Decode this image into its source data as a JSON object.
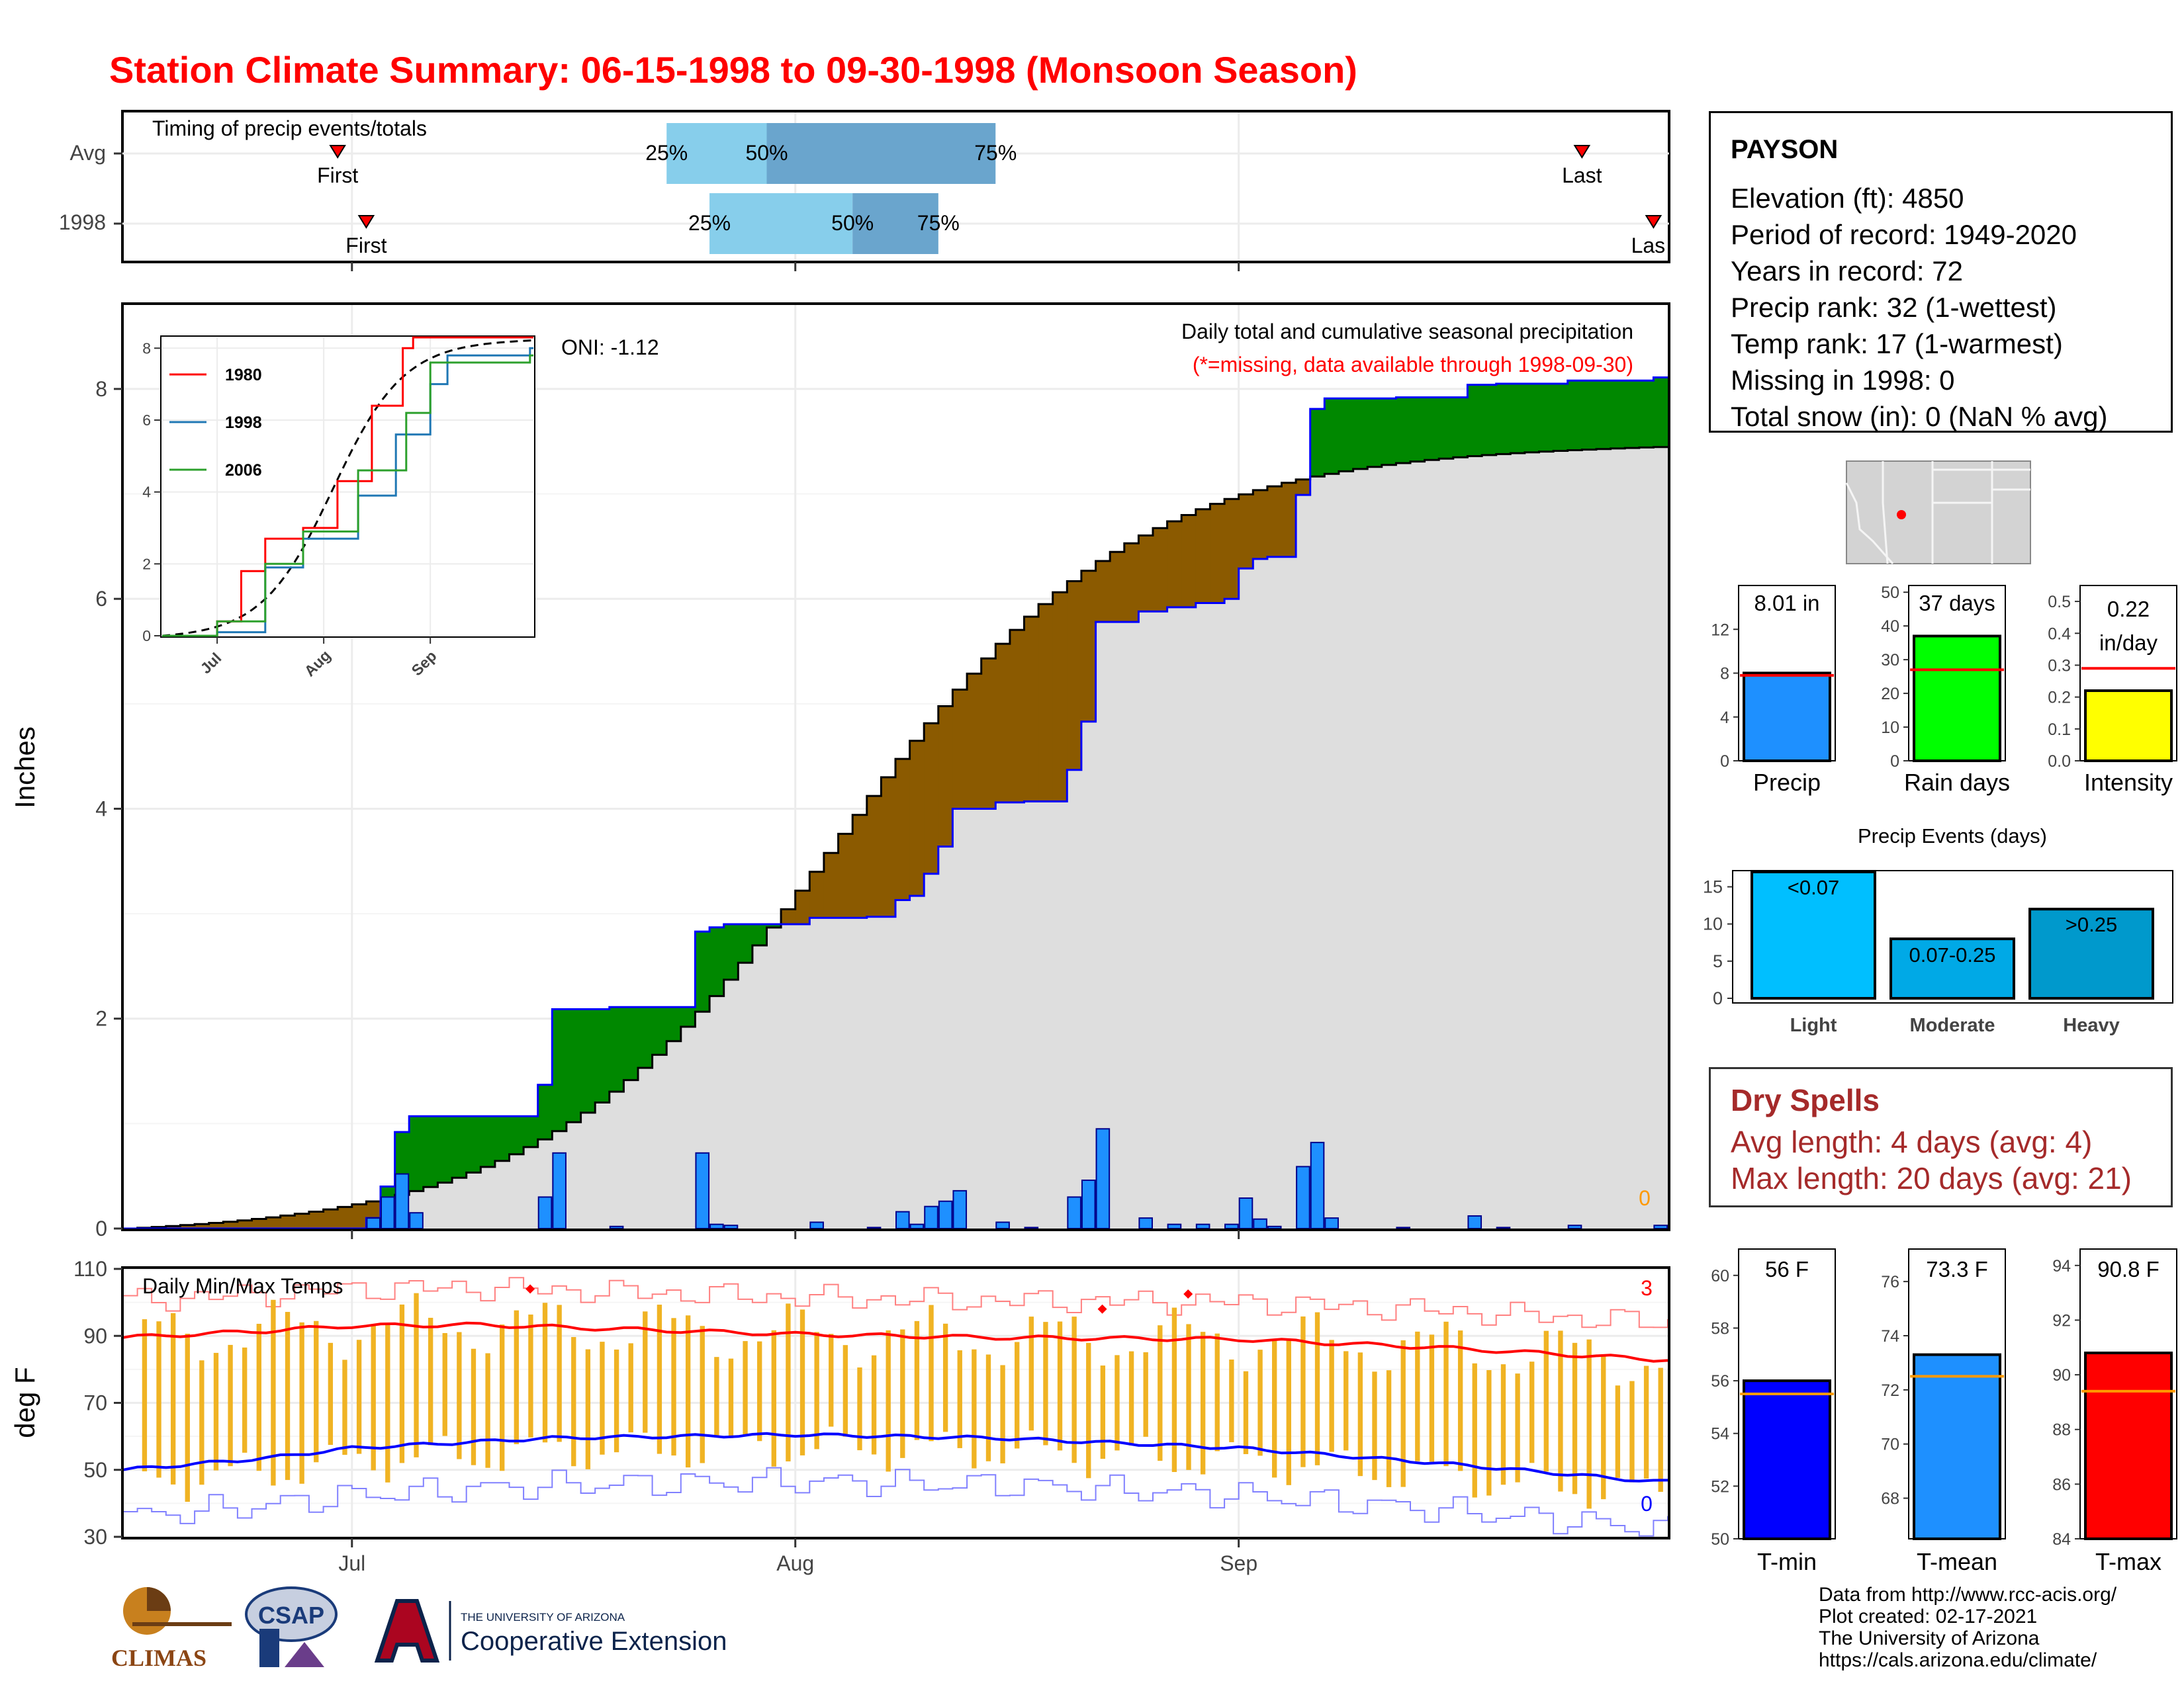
{
  "title": "Station Climate Summary: 06-15-1998 to 09-30-1998 (Monsoon Season)",
  "colors": {
    "title_red": "#ff0000",
    "brown_below": "#8b5a00",
    "green_above": "#008800",
    "bar_blue": "#1e90ff",
    "range_orange": "#f0b323",
    "tmax_red": "#ff0000",
    "tmin_blue": "#0000ff",
    "light_blue": "#87ceeb",
    "mid_blue": "#6aa5cd"
  },
  "timing": {
    "title": "Timing of precip events/totals",
    "rows": [
      "Avg",
      "1998"
    ],
    "first_label": "First",
    "last_label": "Last",
    "last_label_truncated": "Las",
    "pct_labels": [
      "25%",
      "50%",
      "75%"
    ]
  },
  "station_info": {
    "station": "PAYSON",
    "lines": [
      "Elevation (ft): 4850",
      "Period of record: 1949-2020",
      "Years in record: 72",
      "Precip rank: 32 (1-wettest)",
      "Temp rank: 17 (1-warmest)",
      "Missing in 1998: 0",
      "Total snow (in): 0 (NaN % avg)"
    ]
  },
  "main_panel": {
    "ylabel": "Inches",
    "annot_title": "Daily total and cumulative seasonal precipitation",
    "annot_missing": "(*=missing, data available through 1998-09-30)",
    "oni": "ONI: -1.12",
    "missing_count": "0",
    "inset_legend": [
      "1980",
      "1998",
      "2006"
    ],
    "inset_colors": [
      "#ff0000",
      "#1f77b4",
      "#2ca02c"
    ]
  },
  "temp_panel": {
    "title": "Daily Min/Max Temps",
    "ylabel": "deg F",
    "count_hot": "3",
    "count_cold": "0"
  },
  "small_bars": {
    "precip_label": "8.01 in",
    "raindays_label": "37 days",
    "intensity_value": "0.22",
    "intensity_unit": "in/day",
    "xlabels": [
      "Precip",
      "Rain days",
      "Intensity"
    ]
  },
  "events": {
    "title": "Precip Events (days)",
    "categories": [
      "Light",
      "Moderate",
      "Heavy"
    ],
    "bar_labels": [
      "<0.07",
      "0.07-0.25",
      ">0.25"
    ]
  },
  "dry_spells": {
    "title": "Dry Spells",
    "avg": "Avg length: 4 days (avg: 4)",
    "max": "Max length: 20 days (avg: 21)"
  },
  "temp_bars": {
    "labels": [
      "56 F",
      "73.3 F",
      "90.8 F"
    ],
    "xlabels": [
      "T-min",
      "T-mean",
      "T-max"
    ]
  },
  "credits": [
    "Data from http://www.rcc-acis.org/",
    "Plot created: 02-17-2021",
    "The University of Arizona",
    "https://cals.arizona.edu/climate/"
  ],
  "logos": {
    "climas": "CLIMAS",
    "csap": "CSAP",
    "ua_small": "THE UNIVERSITY OF ARIZONA",
    "ua_big": "Cooperative Extension"
  },
  "chart_data": [
    {
      "id": "timing",
      "type": "bar",
      "title": "Timing of precip events/totals",
      "x_axis_range": [
        "1998-06-15",
        "1998-09-30"
      ],
      "x_ticks": [
        "Jul",
        "Aug",
        "Sep"
      ],
      "rows": [
        {
          "name": "Avg",
          "first": "1998-06-30",
          "p25": "1998-07-23",
          "p50": "1998-07-30",
          "p75": "1998-08-15",
          "last": "1998-09-25"
        },
        {
          "name": "1998",
          "first": "1998-07-02",
          "p25": "1998-07-26",
          "p50": "1998-08-05",
          "p75": "1998-08-11",
          "last": "1998-09-30"
        }
      ]
    },
    {
      "id": "precip_main",
      "type": "area",
      "title": "Daily total and cumulative seasonal precipitation",
      "ylabel": "Inches",
      "x_axis_range": [
        "1998-06-15",
        "1998-09-30"
      ],
      "x_ticks": [
        "Jul",
        "Aug",
        "Sep"
      ],
      "ylim": [
        0,
        8.8
      ],
      "y_ticks": [
        0,
        2,
        4,
        6,
        8
      ],
      "avg_cumulative_end": 7.45,
      "observed_cumulative_end": 8.01,
      "daily_precip": [
        {
          "x": "1998-07-02",
          "y": 0.1
        },
        {
          "x": "1998-07-03",
          "y": 0.3
        },
        {
          "x": "1998-07-04",
          "y": 0.52
        },
        {
          "x": "1998-07-05",
          "y": 0.15
        },
        {
          "x": "1998-07-14",
          "y": 0.3
        },
        {
          "x": "1998-07-15",
          "y": 0.72
        },
        {
          "x": "1998-07-19",
          "y": 0.02
        },
        {
          "x": "1998-07-25",
          "y": 0.72
        },
        {
          "x": "1998-07-26",
          "y": 0.04
        },
        {
          "x": "1998-07-27",
          "y": 0.03
        },
        {
          "x": "1998-08-02",
          "y": 0.06
        },
        {
          "x": "1998-08-06",
          "y": 0.01
        },
        {
          "x": "1998-08-08",
          "y": 0.16
        },
        {
          "x": "1998-08-09",
          "y": 0.04
        },
        {
          "x": "1998-08-10",
          "y": 0.21
        },
        {
          "x": "1998-08-11",
          "y": 0.26
        },
        {
          "x": "1998-08-12",
          "y": 0.36
        },
        {
          "x": "1998-08-15",
          "y": 0.06
        },
        {
          "x": "1998-08-17",
          "y": 0.01
        },
        {
          "x": "1998-08-20",
          "y": 0.3
        },
        {
          "x": "1998-08-21",
          "y": 0.46
        },
        {
          "x": "1998-08-22",
          "y": 0.95
        },
        {
          "x": "1998-08-25",
          "y": 0.1
        },
        {
          "x": "1998-08-27",
          "y": 0.04
        },
        {
          "x": "1998-08-29",
          "y": 0.04
        },
        {
          "x": "1998-08-31",
          "y": 0.04
        },
        {
          "x": "1998-09-01",
          "y": 0.29
        },
        {
          "x": "1998-09-02",
          "y": 0.09
        },
        {
          "x": "1998-09-03",
          "y": 0.02
        },
        {
          "x": "1998-09-05",
          "y": 0.59
        },
        {
          "x": "1998-09-06",
          "y": 0.82
        },
        {
          "x": "1998-09-07",
          "y": 0.1
        },
        {
          "x": "1998-09-12",
          "y": 0.01
        },
        {
          "x": "1998-09-17",
          "y": 0.12
        },
        {
          "x": "1998-09-19",
          "y": 0.01
        },
        {
          "x": "1998-09-24",
          "y": 0.03
        },
        {
          "x": "1998-09-30",
          "y": 0.03
        }
      ]
    },
    {
      "id": "inset_cumulative",
      "type": "line",
      "x_ticks": [
        "Jul",
        "Aug",
        "Sep"
      ],
      "ylim": [
        0,
        8.3
      ],
      "y_ticks": [
        0,
        2,
        4,
        6,
        8
      ],
      "series": [
        {
          "name": "1980",
          "points": [
            [
              "1998-07-01",
              0.4
            ],
            [
              "1998-07-08",
              1.8
            ],
            [
              "1998-07-15",
              2.7
            ],
            [
              "1998-07-26",
              3.0
            ],
            [
              "1998-08-05",
              4.3
            ],
            [
              "1998-08-15",
              6.4
            ],
            [
              "1998-08-24",
              8.0
            ],
            [
              "1998-08-27",
              8.3
            ]
          ]
        },
        {
          "name": "1998",
          "points": [
            [
              "1998-07-01",
              0.1
            ],
            [
              "1998-07-15",
              1.9
            ],
            [
              "1998-07-26",
              2.7
            ],
            [
              "1998-08-11",
              3.9
            ],
            [
              "1998-08-22",
              5.6
            ],
            [
              "1998-09-01",
              7.0
            ],
            [
              "1998-09-06",
              7.8
            ],
            [
              "1998-09-30",
              8.0
            ]
          ]
        },
        {
          "name": "2006",
          "points": [
            [
              "1998-07-01",
              0.4
            ],
            [
              "1998-07-15",
              2.0
            ],
            [
              "1998-07-26",
              2.9
            ],
            [
              "1998-08-11",
              4.6
            ],
            [
              "1998-08-25",
              6.2
            ],
            [
              "1998-09-01",
              7.6
            ],
            [
              "1998-09-30",
              7.8
            ]
          ]
        }
      ]
    },
    {
      "id": "temps",
      "type": "line",
      "title": "Daily Min/Max Temps",
      "ylabel": "deg F",
      "x_ticks": [
        "Jul",
        "Aug",
        "Sep"
      ],
      "ylim": [
        30,
        110
      ],
      "y_ticks": [
        30,
        50,
        70,
        90,
        110
      ],
      "series": [
        {
          "name": "avg_max",
          "points": [
            [
              "1998-06-15",
              89.5
            ],
            [
              "1998-06-25",
              91.5
            ],
            [
              "1998-07-01",
              93.0
            ],
            [
              "1998-07-10",
              93.3
            ],
            [
              "1998-07-20",
              92.0
            ],
            [
              "1998-08-01",
              90.5
            ],
            [
              "1998-08-15",
              89.5
            ],
            [
              "1998-09-01",
              89.0
            ],
            [
              "1998-09-15",
              86.5
            ],
            [
              "1998-09-30",
              83.0
            ]
          ]
        },
        {
          "name": "avg_min",
          "points": [
            [
              "1998-06-15",
              50.0
            ],
            [
              "1998-06-25",
              53.5
            ],
            [
              "1998-07-01",
              56.5
            ],
            [
              "1998-07-15",
              59.5
            ],
            [
              "1998-08-01",
              60.5
            ],
            [
              "1998-08-15",
              59.5
            ],
            [
              "1998-09-01",
              56.5
            ],
            [
              "1998-09-15",
              52.0
            ],
            [
              "1998-09-30",
              46.5
            ]
          ]
        }
      ],
      "record_highs_marked": [
        [
          "1998-07-13",
          104.0
        ],
        [
          "1998-08-22",
          98.0
        ],
        [
          "1998-08-28",
          102.5
        ]
      ]
    },
    {
      "id": "small_precip",
      "type": "bar",
      "categories": [
        "Precip"
      ],
      "values": [
        8.01
      ],
      "avg": 7.8,
      "ylim": [
        0,
        16
      ],
      "y_ticks": [
        0,
        4,
        8,
        12
      ]
    },
    {
      "id": "small_raindays",
      "type": "bar",
      "categories": [
        "Rain days"
      ],
      "values": [
        37
      ],
      "avg": 27,
      "ylim": [
        0,
        52
      ],
      "y_ticks": [
        0,
        10,
        20,
        30,
        40,
        50
      ]
    },
    {
      "id": "small_intensity",
      "type": "bar",
      "categories": [
        "Intensity"
      ],
      "values": [
        0.22
      ],
      "avg": 0.29,
      "ylim": [
        0,
        0.55
      ],
      "y_ticks": [
        0.0,
        0.1,
        0.2,
        0.3,
        0.4,
        0.5
      ]
    },
    {
      "id": "precip_events",
      "type": "bar",
      "title": "Precip Events (days)",
      "categories": [
        "Light",
        "Moderate",
        "Heavy"
      ],
      "values": [
        17,
        8,
        12
      ],
      "ylim": [
        0,
        17
      ],
      "y_ticks": [
        0,
        5,
        10,
        15
      ]
    },
    {
      "id": "tmin",
      "type": "bar",
      "categories": [
        "T-min"
      ],
      "values": [
        56.0
      ],
      "avg": 55.5,
      "ylim": [
        50,
        61
      ],
      "y_ticks": [
        50,
        52,
        54,
        56,
        58,
        60
      ]
    },
    {
      "id": "tmean",
      "type": "bar",
      "categories": [
        "T-mean"
      ],
      "values": [
        73.3
      ],
      "avg": 72.5,
      "ylim": [
        66.5,
        77.2
      ],
      "y_ticks": [
        68,
        70,
        72,
        74,
        76
      ]
    },
    {
      "id": "tmax",
      "type": "bar",
      "categories": [
        "T-max"
      ],
      "values": [
        90.8
      ],
      "avg": 89.4,
      "ylim": [
        84,
        94.6
      ],
      "y_ticks": [
        84,
        86,
        88,
        90,
        92,
        94
      ]
    }
  ]
}
